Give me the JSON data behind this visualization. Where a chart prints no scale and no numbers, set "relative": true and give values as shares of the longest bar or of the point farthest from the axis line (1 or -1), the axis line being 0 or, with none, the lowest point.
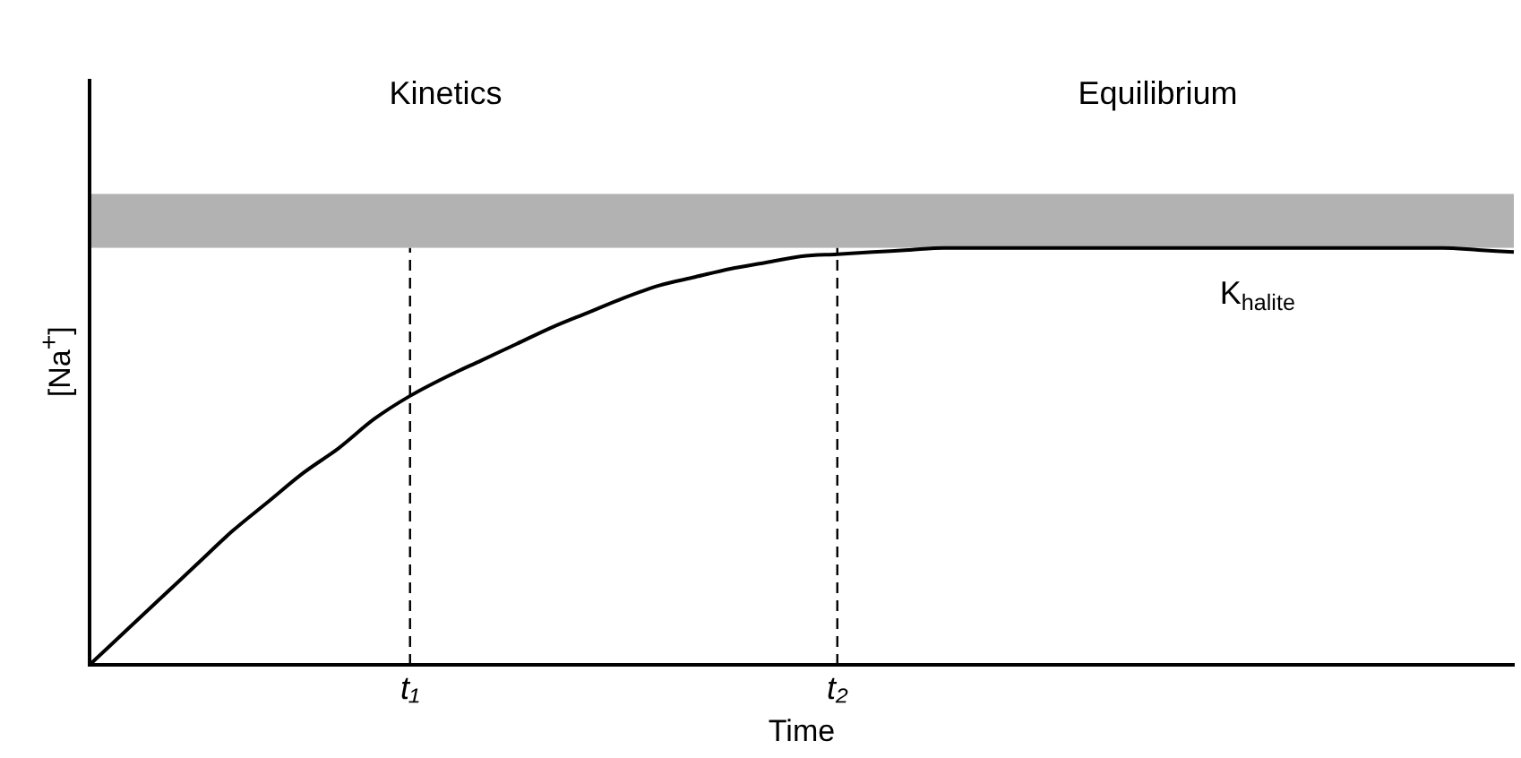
{
  "chart_data": {
    "type": "line",
    "relative": true,
    "xlabel": "Time",
    "ylabel": "[Na$^{+}$]",
    "categories": [
      null,
      null,
      null,
      null,
      null,
      null,
      null,
      null,
      null,
      "t₁",
      null,
      null,
      null,
      null,
      null,
      null,
      null,
      null,
      null,
      null,
      null,
      "t₂",
      null,
      null,
      null,
      null,
      null,
      null,
      null,
      null,
      null,
      null,
      null,
      null,
      null,
      null,
      null,
      null,
      null,
      null,
      null
    ],
    "series": [
      {
        "color": "#000000",
        "values": [
          0,
          0.08,
          0.16,
          0.24,
          0.32,
          0.39,
          0.46,
          0.52,
          0.59,
          0.645,
          0.69,
          0.73,
          0.77,
          0.81,
          0.845,
          0.88,
          0.91,
          0.93,
          0.95,
          0.965,
          0.98,
          0.985,
          0.99,
          0.995,
          1,
          1,
          1,
          1,
          1,
          1,
          1,
          1,
          1,
          1,
          1,
          1,
          1,
          1,
          1,
          0.995,
          0.99
        ]
      }
    ],
    "bands": [
      {
        "axis": "y",
        "from": 1,
        "to": 1.13,
        "color": "#000000",
        "label": "K$_{halite}$"
      }
    ],
    "ref_lines": [
      {
        "axis": "x",
        "value": "t₁",
        "line_style": "dashed"
      },
      {
        "axis": "x",
        "value": "t₂",
        "line_style": "dashed"
      }
    ],
    "annotations": [
      "Kinetics",
      "Equilibrium"
    ],
    "grid": false,
    "legend": false,
    "marker": "none",
    "line_style": "solid"
  }
}
